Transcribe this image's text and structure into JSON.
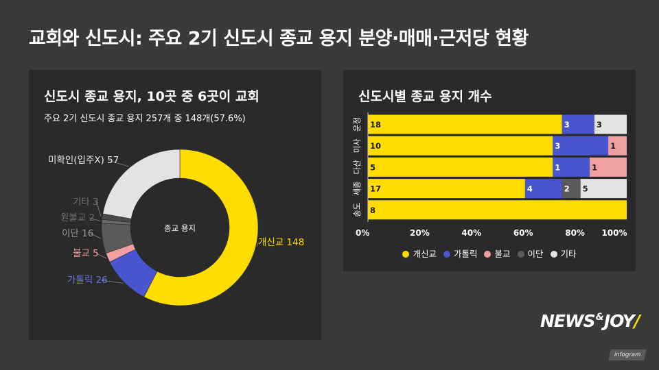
{
  "page_title": "교회와 신도시: 주요 2기 신도시 종교 용지 분양·매매·근저당 현황",
  "colors": {
    "gaesingyo": "#ffdd00",
    "catholic": "#4a55d0",
    "buddhism": "#f0a0a0",
    "idan": "#5a5a5a",
    "other": "#e3e3e3",
    "unconfirmed": "#e3e3e3"
  },
  "chart_data": [
    {
      "type": "pie",
      "title": "신도시 종교 용지, 10곳 중 6곳이 교회",
      "subtitle": "주요 2기 신도시 종교 용지 257개 중 148개(57.6%)",
      "center_label": "종교 용지",
      "slices": [
        {
          "label": "개신교",
          "value": 148,
          "text": "개신교 148",
          "color": "#ffdd00",
          "label_color": "#ffdd00"
        },
        {
          "label": "가톨릭",
          "value": 26,
          "text": "가톨릭 26",
          "color": "#4a55d0",
          "label_color": "#6b74e6"
        },
        {
          "label": "불교",
          "value": 5,
          "text": "불교 5",
          "color": "#f0a0a0",
          "label_color": "#f09a9a"
        },
        {
          "label": "이단",
          "value": 16,
          "text": "이단 16",
          "color": "#5a5a5a",
          "label_color": "#9a9a9a"
        },
        {
          "label": "원불교",
          "value": 2,
          "text": "원불교 2",
          "color": "#6a6a6a",
          "label_color": "#6e6e6e"
        },
        {
          "label": "기타",
          "value": 3,
          "text": "기타 3",
          "color": "#4a4a4a",
          "label_color": "#6e6e6e"
        },
        {
          "label": "미확인(입주X)",
          "value": 57,
          "text": "미확인(입주X) 57",
          "color": "#e3e3e3",
          "label_color": "#e8e8e8"
        }
      ]
    },
    {
      "type": "bar",
      "stacked": true,
      "percent": true,
      "orientation": "horizontal",
      "title": "신도시별 종교 용지 개수",
      "categories": [
        "운정",
        "미사",
        "다산",
        "세종",
        "송도"
      ],
      "x_ticks": [
        "0%",
        "20%",
        "40%",
        "60%",
        "80%",
        "100%"
      ],
      "series": [
        {
          "name": "개신교",
          "color": "#ffdd00",
          "values": [
            18,
            10,
            5,
            17,
            8
          ]
        },
        {
          "name": "가톨릭",
          "color": "#4a55d0",
          "values": [
            3,
            3,
            1,
            4,
            0
          ]
        },
        {
          "name": "불교",
          "color": "#f0a0a0",
          "values": [
            0,
            1,
            1,
            0,
            0
          ]
        },
        {
          "name": "이단",
          "color": "#5a5a5a",
          "values": [
            0,
            0,
            0,
            2,
            0
          ]
        },
        {
          "name": "기타",
          "color": "#e3e3e3",
          "values": [
            3,
            0,
            0,
            5,
            0
          ]
        }
      ],
      "legend_position": "bottom"
    }
  ],
  "logo": {
    "part1": "NEWS",
    "amp": "&",
    "part2": "JOY"
  },
  "badge": "infogram"
}
